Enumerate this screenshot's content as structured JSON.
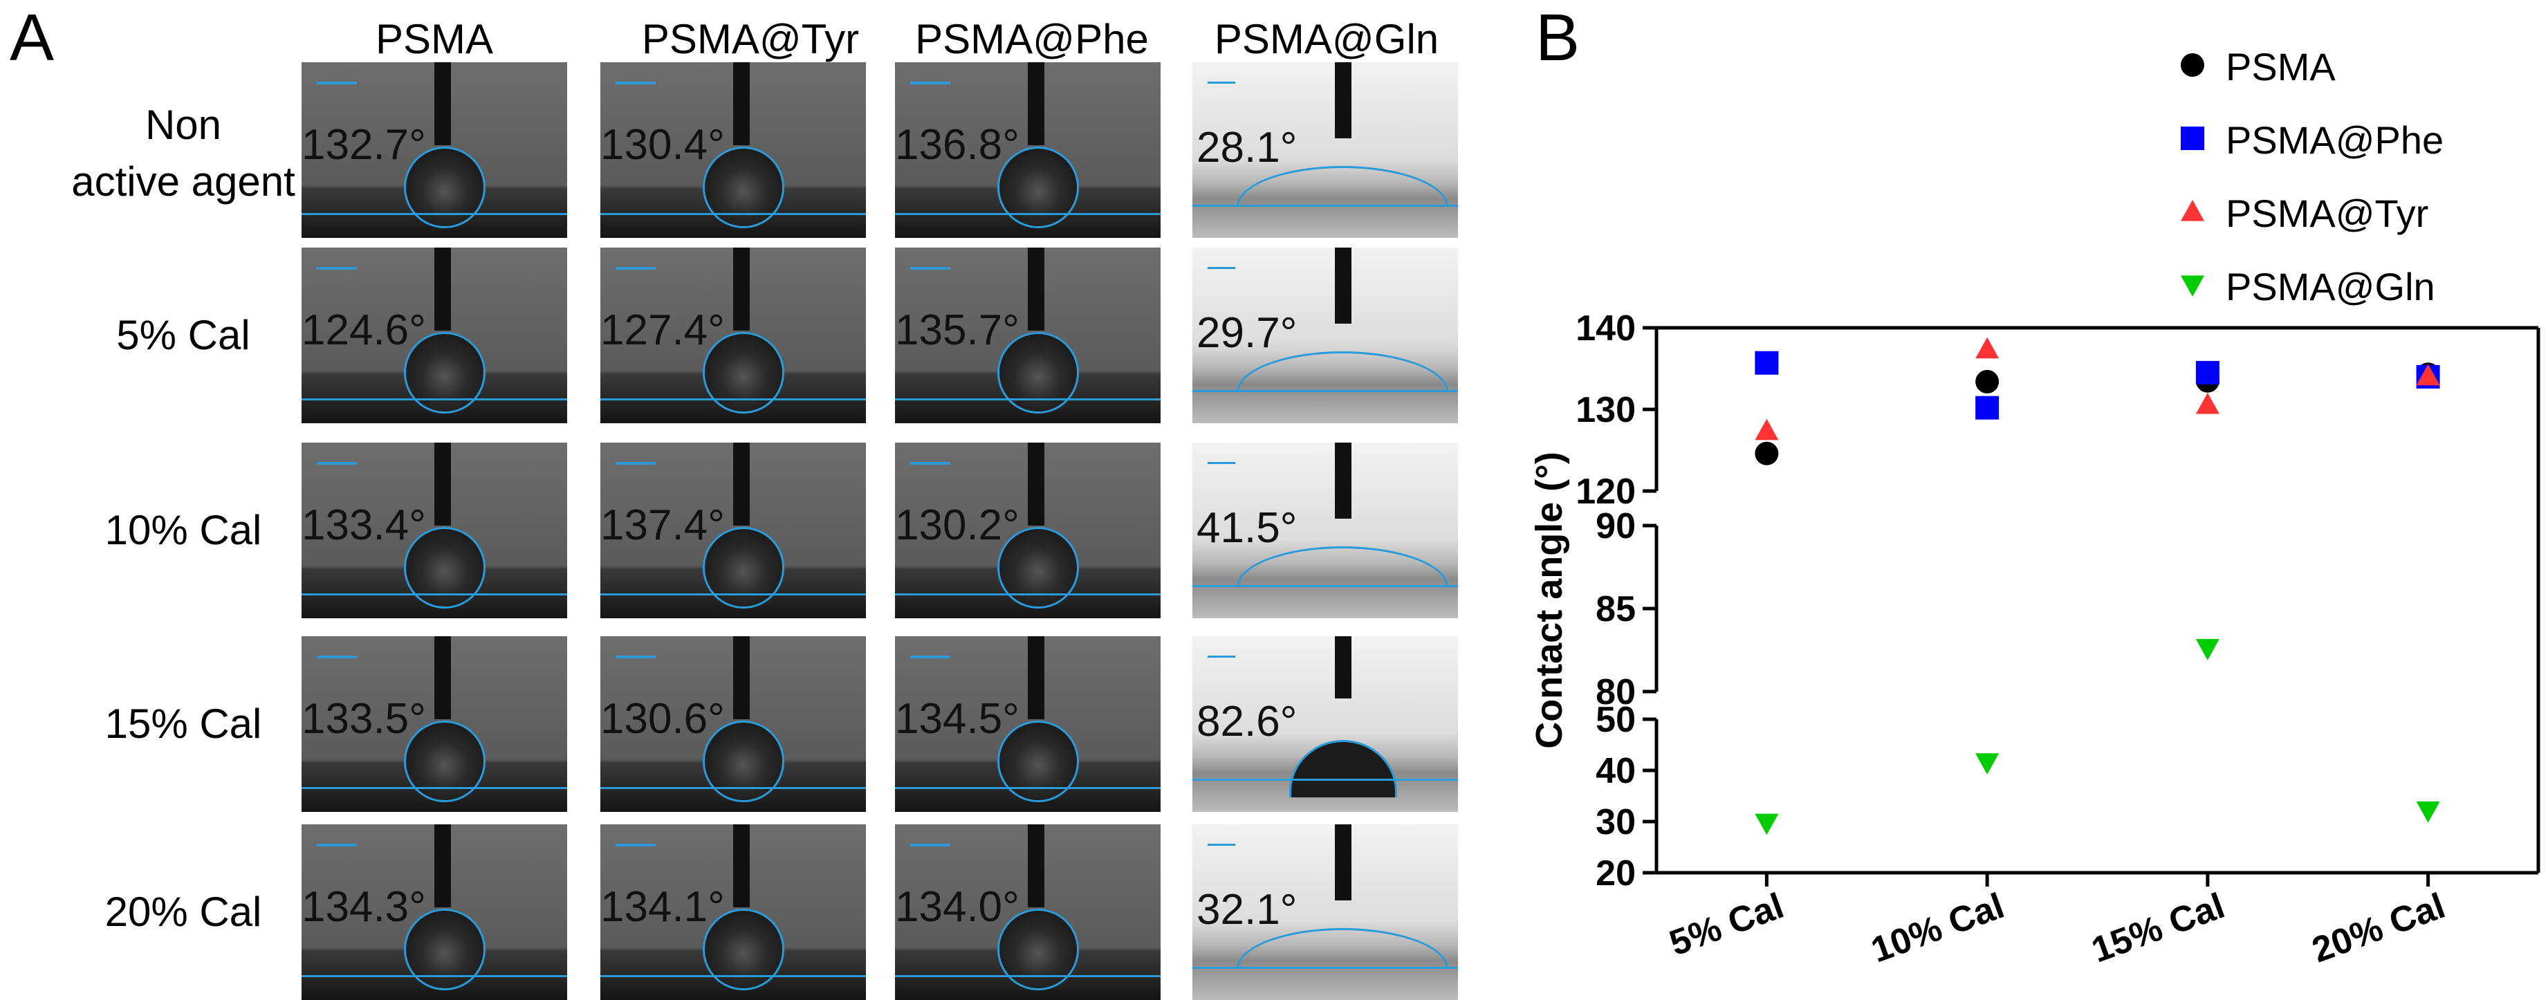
{
  "panel_a": {
    "letter": "A",
    "columns": [
      "PSMA",
      "PSMA@Tyr",
      "PSMA@Phe",
      "PSMA@Gln"
    ],
    "rows": [
      {
        "label_line1": "Non",
        "label_line2": "active agent",
        "angles": [
          "132.7°",
          "130.4°",
          "136.8°",
          "28.1°"
        ]
      },
      {
        "label_line1": "5% Cal",
        "label_line2": "",
        "angles": [
          "124.6°",
          "127.4°",
          "135.7°",
          "29.7°"
        ]
      },
      {
        "label_line1": "10% Cal",
        "label_line2": "",
        "angles": [
          "133.4°",
          "137.4°",
          "130.2°",
          "41.5°"
        ]
      },
      {
        "label_line1": "15% Cal",
        "label_line2": "",
        "angles": [
          "133.5°",
          "130.6°",
          "134.5°",
          "82.6°"
        ]
      },
      {
        "label_line1": "20% Cal",
        "label_line2": "",
        "angles": [
          "134.3°",
          "134.1°",
          "134.0°",
          "32.1°"
        ]
      }
    ]
  },
  "panel_b": {
    "letter": "B",
    "legend": [
      {
        "name": "PSMA",
        "marker": "circle",
        "color": "#000000"
      },
      {
        "name": "PSMA@Phe",
        "marker": "square",
        "color": "#0000ff"
      },
      {
        "name": "PSMA@Tyr",
        "marker": "triangle-up",
        "color": "#ff3333"
      },
      {
        "name": "PSMA@Gln",
        "marker": "triangle-down",
        "color": "#00cc00"
      }
    ]
  },
  "chart_data": {
    "type": "scatter",
    "categories": [
      "5% Cal",
      "10% Cal",
      "15% Cal",
      "20% Cal"
    ],
    "ylabel": "Contact angle (°)",
    "xlabel": "",
    "title": "",
    "y_axis_segments": [
      {
        "ylim": [
          120,
          140
        ],
        "ticks": [
          120,
          130,
          140
        ]
      },
      {
        "ylim": [
          80,
          90
        ],
        "ticks": [
          80,
          85,
          90
        ]
      },
      {
        "ylim": [
          20,
          50
        ],
        "ticks": [
          20,
          30,
          40,
          50
        ]
      }
    ],
    "series": [
      {
        "name": "PSMA",
        "values": [
          124.6,
          133.4,
          133.5,
          134.3
        ]
      },
      {
        "name": "PSMA@Phe",
        "values": [
          135.7,
          130.2,
          134.5,
          134.0
        ]
      },
      {
        "name": "PSMA@Tyr",
        "values": [
          127.4,
          137.4,
          130.6,
          134.1
        ]
      },
      {
        "name": "PSMA@Gln",
        "values": [
          29.7,
          41.5,
          82.6,
          32.1
        ]
      }
    ],
    "legend_position": "top"
  }
}
